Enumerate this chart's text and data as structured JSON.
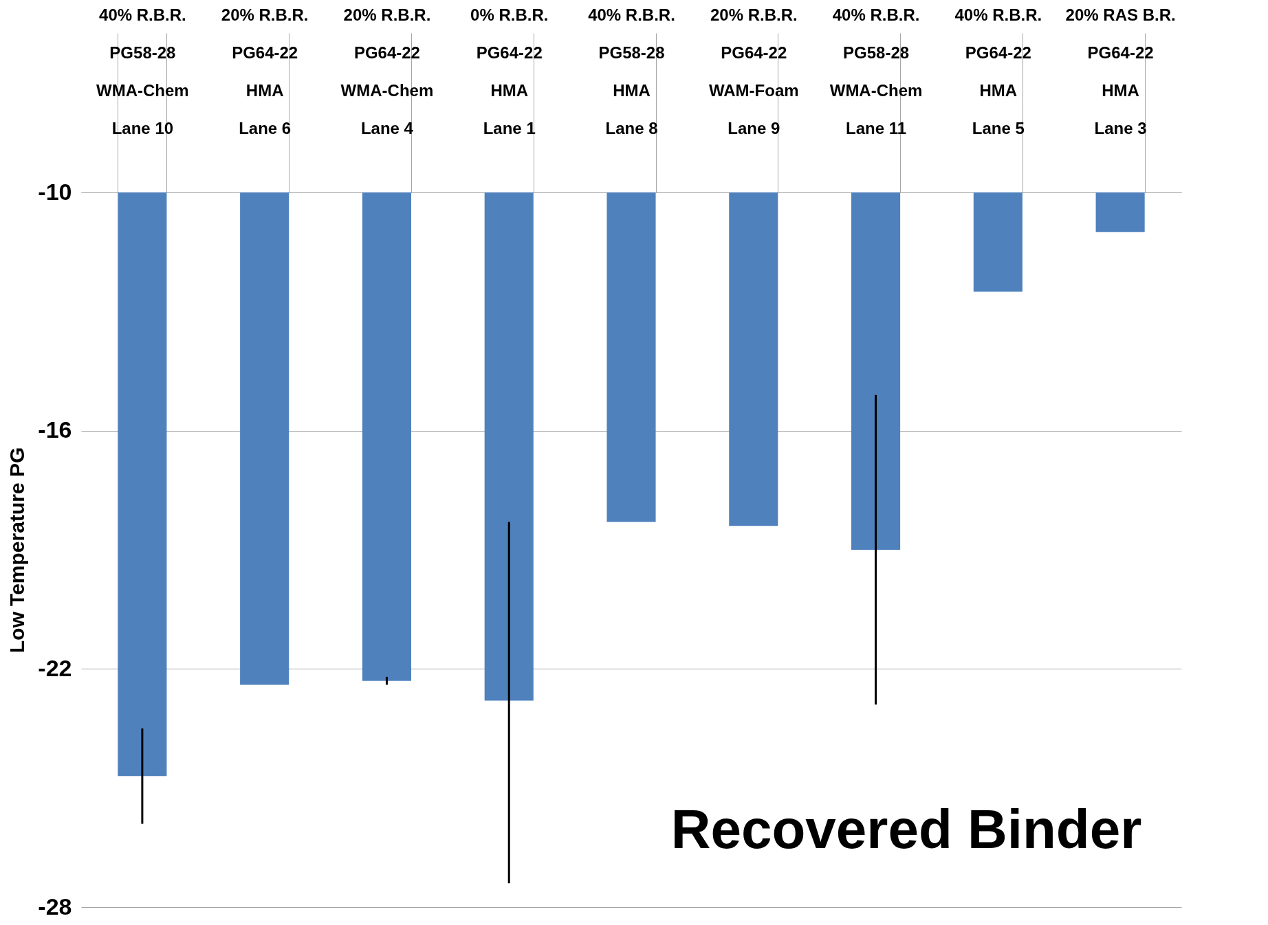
{
  "chart_data": {
    "type": "bar",
    "ylabel": "Low Temperature PG",
    "categories": [
      "40% R.B.R.\nPG58-28\nWMA-Chem\nLane 10",
      "20% R.B.R.\nPG64-22\nHMA\nLane 6",
      "20% R.B.R.\nPG64-22\nWMA-Chem\nLane 4",
      "0% R.B.R.\nPG64-22\nHMA\nLane 1",
      "40% R.B.R.\nPG58-28\nHMA\nLane 8",
      "20% R.B.R.\nPG64-22\nWAM-Foam\nLane 9",
      "40% R.B.R.\nPG58-28\nWMA-Chem\nLane 11",
      "40% R.B.R.\nPG64-22\nHMA\nLane 5",
      "20% RAS B.R.\nPG64-22\nHMA\nLane 3"
    ],
    "values": [
      -24.7,
      -22.4,
      -22.3,
      -22.8,
      -18.3,
      -18.4,
      -19.0,
      -12.5,
      -11.0
    ],
    "color": "#4f81bd",
    "errors": [
      [
        -25.9,
        -23.5
      ],
      null,
      [
        -22.4,
        -22.2
      ],
      [
        -27.4,
        -18.3
      ],
      null,
      null,
      [
        -22.9,
        -15.1
      ],
      null,
      null
    ],
    "ylim": [
      -28,
      -10
    ],
    "yticks": [
      -28,
      -22,
      -16,
      -10
    ],
    "grid": "y",
    "annotations": [
      "Recovered Binder"
    ]
  }
}
